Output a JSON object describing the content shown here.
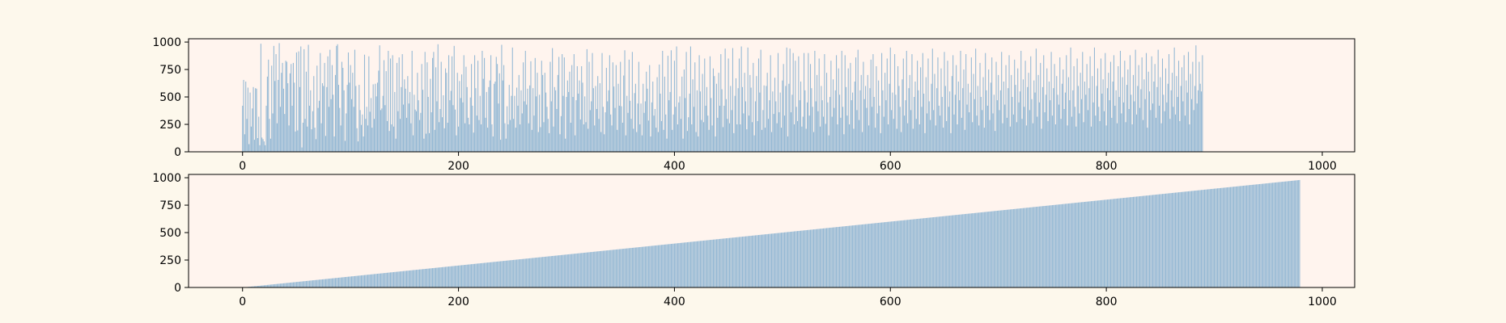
{
  "figure": {
    "background": "#fdf8ec",
    "axes_background": "#fff4ee",
    "bar_color": "#94b8d4"
  },
  "chart_data": [
    {
      "type": "bar",
      "title": "",
      "xlabel": "",
      "ylabel": "",
      "xlim": [
        -50,
        1030
      ],
      "ylim": [
        0,
        1030
      ],
      "xticks": [
        0,
        200,
        400,
        600,
        800,
        1000
      ],
      "yticks": [
        0,
        250,
        500,
        750,
        1000
      ],
      "x": {
        "start": 0,
        "end": 979,
        "step": 1
      },
      "values": [
        420,
        655,
        160,
        640,
        300,
        585,
        70,
        540,
        230,
        395,
        590,
        110,
        580,
        575,
        125,
        320,
        60,
        985,
        130,
        115,
        95,
        60,
        420,
        685,
        840,
        300,
        120,
        785,
        350,
        965,
        645,
        890,
        260,
        655,
        990,
        410,
        720,
        810,
        575,
        345,
        830,
        820,
        625,
        240,
        715,
        800,
        420,
        810,
        630,
        185,
        905,
        195,
        915,
        590,
        960,
        40,
        265,
        935,
        300,
        730,
        230,
        975,
        420,
        560,
        205,
        370,
        690,
        220,
        115,
        785,
        400,
        465,
        900,
        260,
        625,
        600,
        810,
        145,
        590,
        870,
        410,
        930,
        480,
        790,
        520,
        140,
        700,
        965,
        980,
        610,
        400,
        240,
        820,
        765,
        560,
        100,
        350,
        610,
        905,
        630,
        790,
        480,
        720,
        410,
        930,
        600,
        215,
        95,
        610,
        380,
        245,
        340,
        140,
        885,
        300,
        410,
        240,
        870,
        365,
        490,
        220,
        615,
        300,
        620,
        505,
        630,
        740,
        970,
        380,
        395,
        510,
        835,
        425,
        735,
        280,
        920,
        190,
        850,
        250,
        880,
        230,
        545,
        120,
        810,
        370,
        860,
        300,
        590,
        890,
        430,
        660,
        575,
        310,
        690,
        440,
        545,
        260,
        920,
        150,
        520,
        385,
        370,
        720,
        470,
        290,
        355,
        800,
        565,
        120,
        910,
        165,
        815,
        500,
        170,
        665,
        360,
        855,
        910,
        200,
        770,
        460,
        980,
        270,
        390,
        820,
        315,
        515,
        215,
        760,
        720,
        265,
        880,
        470,
        555,
        870,
        425,
        965,
        385,
        150,
        720,
        230,
        645,
        490,
        705,
        450,
        880,
        260,
        775,
        590,
        310,
        250,
        495,
        800,
        420,
        175,
        880,
        580,
        330,
        830,
        290,
        510,
        250,
        920,
        665,
        855,
        310,
        545,
        220,
        590,
        650,
        880,
        250,
        140,
        620,
        640,
        865,
        800,
        440,
        715,
        110,
        975,
        650,
        790,
        260,
        120,
        415,
        250,
        610,
        290,
        510,
        950,
        300,
        510,
        220,
        585,
        420,
        700,
        250,
        560,
        350,
        815,
        460,
        920,
        430,
        575,
        260,
        605,
        825,
        200,
        580,
        330,
        855,
        505,
        720,
        180,
        520,
        225,
        830,
        700,
        270,
        720,
        540,
        410,
        300,
        170,
        820,
        460,
        945,
        230,
        590,
        560,
        390,
        700,
        865,
        160,
        325,
        890,
        510,
        860,
        120,
        500,
        650,
        545,
        730,
        265,
        790,
        500,
        890,
        150,
        470,
        780,
        530,
        650,
        295,
        780,
        630,
        250,
        505,
        270,
        935,
        210,
        820,
        380,
        460,
        900,
        580,
        240,
        600,
        390,
        690,
        300,
        625,
        180,
        900,
        410,
        160,
        360,
        765,
        460,
        560,
        880,
        340,
        240,
        815,
        595,
        400,
        790,
        200,
        620,
        420,
        820,
        415,
        265,
        695,
        925,
        150,
        510,
        355,
        840,
        465,
        300,
        910,
        210,
        535,
        620,
        180,
        440,
        820,
        250,
        440,
        150,
        620,
        355,
        460,
        730,
        575,
        285,
        790,
        140,
        450,
        640,
        330,
        390,
        220,
        680,
        180,
        795,
        530,
        280,
        920,
        200,
        685,
        340,
        120,
        875,
        470,
        545,
        925,
        200,
        340,
        830,
        410,
        960,
        250,
        450,
        505,
        300,
        685,
        120,
        750,
        490,
        910,
        190,
        315,
        530,
        960,
        250,
        660,
        410,
        815,
        180,
        560,
        140,
        880,
        550,
        290,
        710,
        270,
        850,
        420,
        590,
        330,
        200,
        870,
        490,
        240,
        760,
        690,
        140,
        620,
        310,
        720,
        420,
        890,
        570,
        225,
        420,
        940,
        480,
        300,
        850,
        260,
        600,
        380,
        945,
        170,
        510,
        670,
        250,
        580,
        850,
        250,
        960,
        590,
        350,
        720,
        460,
        205,
        950,
        330,
        700,
        585,
        270,
        810,
        150,
        460,
        690,
        280,
        850,
        540,
        930,
        200,
        380,
        605,
        220,
        600,
        720,
        300,
        470,
        880,
        180,
        550,
        345,
        675,
        460,
        260,
        900,
        360,
        540,
        220,
        650,
        800,
        330,
        600,
        950,
        140,
        620,
        940,
        360,
        520,
        900,
        250,
        830,
        410,
        280,
        870,
        470,
        640,
        230,
        320,
        900,
        560,
        210,
        450,
        900,
        330,
        800,
        580,
        410,
        180,
        920,
        460,
        700,
        370,
        850,
        230,
        600,
        470,
        320,
        890,
        255,
        720,
        450,
        150,
        500,
        830,
        320,
        660,
        400,
        560,
        880,
        250,
        760,
        520,
        310,
        920,
        410,
        160,
        880,
        590,
        330,
        760,
        250,
        810,
        470,
        540,
        210,
        640,
        860,
        380,
        930,
        290,
        560,
        700,
        180,
        820,
        480,
        600,
        400,
        700,
        240,
        580,
        840,
        410,
        890,
        500,
        220,
        780,
        350,
        650,
        420,
        170,
        900,
        560,
        320,
        720,
        470,
        850,
        250,
        620,
        950,
        380,
        540,
        300,
        890,
        520,
        210,
        780,
        600,
        410,
        180,
        660,
        850,
        330,
        470,
        920,
        260,
        580,
        700,
        380,
        890,
        210,
        500,
        640,
        300,
        830,
        560,
        250,
        770,
        410,
        900,
        530,
        170,
        680,
        350,
        850,
        460,
        290,
        620,
        940,
        380,
        710,
        240,
        580,
        860,
        420,
        330,
        760,
        500,
        220,
        910,
        600,
        280,
        830,
        410,
        550,
        170,
        690,
        880,
        340,
        520,
        790,
        250,
        640,
        470,
        920,
        310,
        580,
        750,
        200,
        890,
        430,
        620,
        360,
        540,
        860,
        270,
        710,
        480,
        940,
        330,
        600,
        240,
        810,
        500,
        380,
        680,
        220,
        900,
        560,
        420,
        750,
        290,
        630,
        860,
        350,
        520,
        190,
        820,
        470,
        700,
        380,
        560,
        910,
        260,
        640,
        430,
        790,
        310,
        580,
        880,
        230,
        700,
        500,
        340,
        840,
        610,
        270,
        760,
        450,
        550,
        920,
        300,
        660,
        410,
        830,
        240,
        590,
        720,
        380,
        870,
        480,
        260,
        650,
        540,
        940,
        320,
        700,
        450,
        810,
        210,
        590,
        880,
        360,
        520,
        760,
        280,
        640,
        470,
        910,
        330,
        580,
        800,
        250,
        690,
        520,
        430,
        860,
        300,
        620,
        750,
        390,
        540,
        880,
        240,
        680,
        470,
        950,
        320,
        560,
        780,
        410,
        230,
        850,
        600,
        350,
        720,
        480,
        910,
        270,
        640,
        520,
        800,
        380,
        580,
        870,
        230,
        690,
        450,
        950,
        330,
        600,
        760,
        410,
        280,
        850,
        530,
        660,
        370,
        900,
        240,
        580,
        720,
        470,
        820,
        310,
        640,
        880,
        420,
        560,
        260,
        780,
        500,
        920,
        350,
        680,
        450,
        830,
        270,
        610,
        750,
        390,
        880,
        520,
        250,
        700,
        460,
        930,
        340,
        600,
        790,
        400,
        570,
        860,
        290,
        660,
        480,
        900,
        220,
        730,
        550,
        380,
        870,
        440,
        640,
        800,
        310,
        590,
        930,
        420,
        680,
        260,
        850,
        520,
        370,
        760,
        450,
        620,
        890,
        300,
        560,
        720,
        410,
        950,
        340,
        690,
        500,
        830,
        280,
        600,
        770,
        460,
        880,
        330,
        650,
        540,
        910,
        250,
        710,
        480,
        820,
        380,
        600,
        970,
        440,
        560,
        820,
        620,
        550,
        880
      ],
      "panel": "top"
    },
    {
      "type": "bar",
      "title": "",
      "xlabel": "",
      "ylabel": "",
      "xlim": [
        -50,
        1030
      ],
      "ylim": [
        0,
        1030
      ],
      "xticks": [
        0,
        200,
        400,
        600,
        800,
        1000
      ],
      "yticks": [
        0,
        250,
        500,
        750,
        1000
      ],
      "x": {
        "start": 0,
        "end": 979,
        "step": 1
      },
      "values_rule": "y = x",
      "panel": "bottom"
    }
  ]
}
